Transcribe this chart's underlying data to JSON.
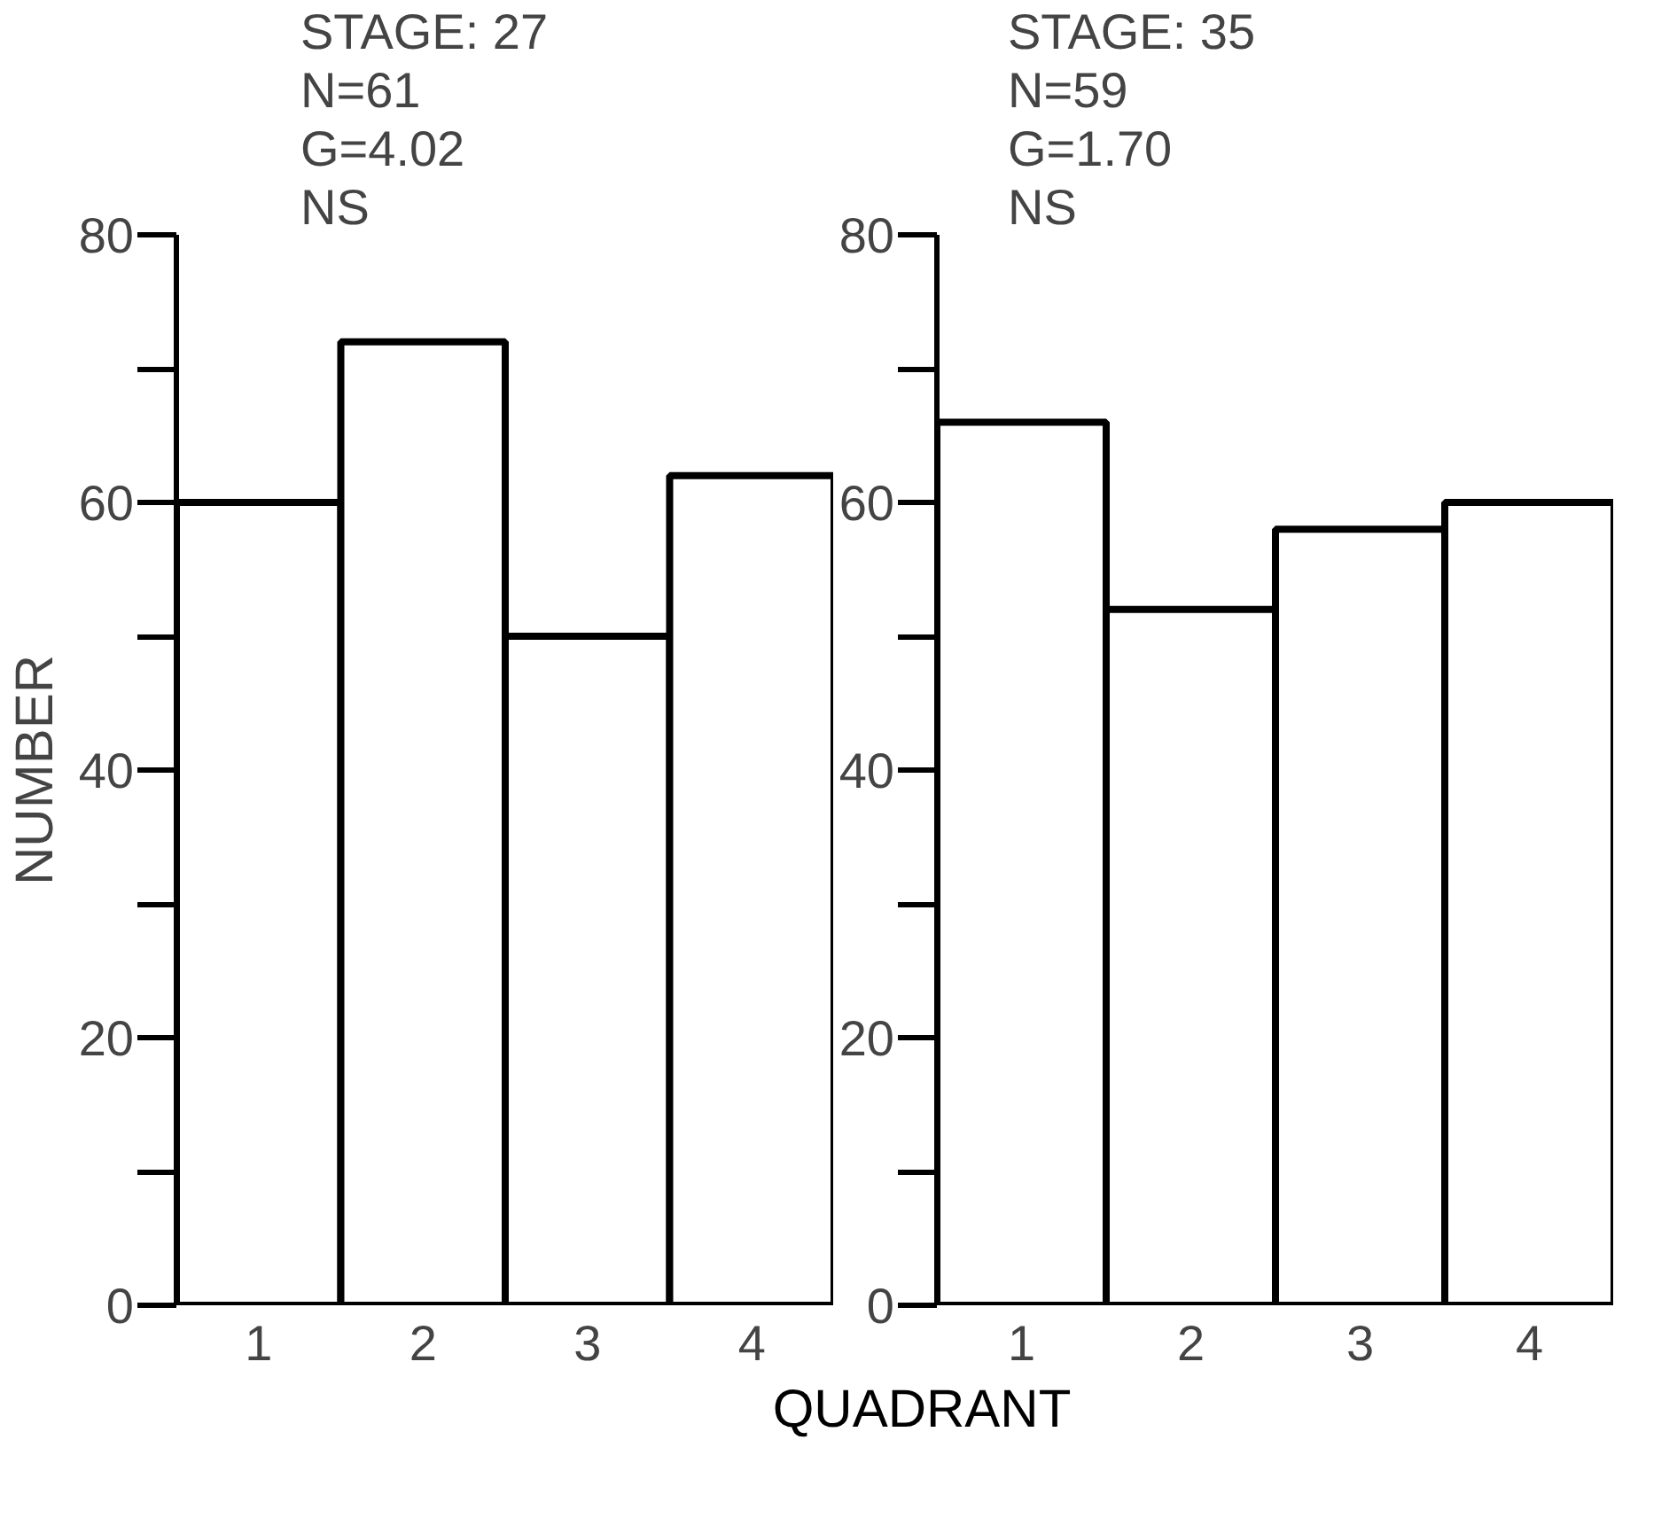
{
  "chart_data": [
    {
      "type": "bar",
      "ylabel": "NUMBER",
      "xlabel": "QUADRANT",
      "annotations": [
        "STAGE: 27",
        "N=61",
        "G=4.02",
        "NS"
      ],
      "categories": [
        "1",
        "2",
        "3",
        "4"
      ],
      "values": [
        60,
        72,
        50,
        62
      ],
      "color": "#ffffff",
      "ylim": [
        0,
        80
      ],
      "yticks": [
        0,
        20,
        40,
        60,
        80
      ],
      "grid": false
    },
    {
      "type": "bar",
      "annotations": [
        "STAGE: 35",
        "N=59",
        "G=1.70",
        "NS"
      ],
      "categories": [
        "1",
        "2",
        "3",
        "4"
      ],
      "values": [
        66,
        52,
        58,
        60
      ],
      "color": "#ffffff",
      "ylim": [
        0,
        80
      ],
      "yticks": [
        0,
        20,
        40,
        60,
        80
      ],
      "grid": false
    }
  ]
}
